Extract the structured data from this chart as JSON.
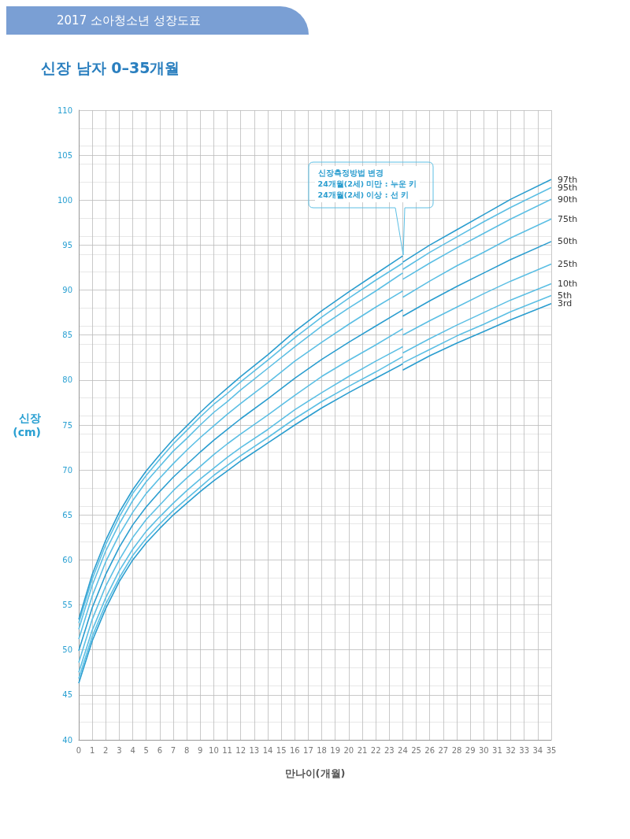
{
  "chart_data": {
    "type": "line",
    "subtitle": "2017 소아청소년 성장도표",
    "title": "신장 남자 0–35개월",
    "xlabel": "만나이(개월)",
    "ylabel": "신장 (cm)",
    "x": [
      0,
      1,
      2,
      3,
      4,
      5,
      6,
      7,
      8,
      9,
      10,
      11,
      12,
      14,
      16,
      18,
      20,
      22,
      24,
      24,
      26,
      28,
      30,
      32,
      35
    ],
    "series": [
      {
        "name": "3rd",
        "color": "#2a9dcf",
        "values": [
          46.3,
          51.0,
          54.6,
          57.6,
          60.0,
          61.9,
          63.5,
          65.0,
          66.3,
          67.6,
          68.8,
          69.9,
          71.0,
          73.0,
          75.0,
          76.9,
          78.6,
          80.2,
          81.8,
          81.1,
          82.7,
          84.1,
          85.4,
          86.7,
          88.5
        ]
      },
      {
        "name": "5th",
        "color": "#5cbfe4",
        "values": [
          46.8,
          51.5,
          55.1,
          58.0,
          60.5,
          62.4,
          64.0,
          65.5,
          66.8,
          68.1,
          69.4,
          70.5,
          71.6,
          73.6,
          75.7,
          77.6,
          79.3,
          80.9,
          82.6,
          81.9,
          83.4,
          84.9,
          86.2,
          87.6,
          89.4
        ]
      },
      {
        "name": "10th",
        "color": "#5cbfe4",
        "values": [
          47.5,
          52.2,
          55.8,
          58.8,
          61.2,
          63.2,
          64.8,
          66.3,
          67.7,
          69.0,
          70.2,
          71.4,
          72.5,
          74.5,
          76.7,
          78.6,
          80.4,
          82.1,
          83.7,
          83.0,
          84.6,
          86.1,
          87.5,
          88.9,
          90.7
        ]
      },
      {
        "name": "25th",
        "color": "#5cbfe4",
        "values": [
          48.6,
          53.4,
          57.1,
          60.0,
          62.5,
          64.5,
          66.1,
          67.7,
          69.1,
          70.4,
          71.7,
          72.9,
          74.0,
          76.1,
          78.3,
          80.4,
          82.2,
          83.9,
          85.7,
          85.0,
          86.6,
          88.1,
          89.6,
          91.0,
          92.9
        ]
      },
      {
        "name": "50th",
        "color": "#2a9dcf",
        "values": [
          49.9,
          54.7,
          58.4,
          61.4,
          63.9,
          65.9,
          67.6,
          69.2,
          70.6,
          72.0,
          73.3,
          74.5,
          75.7,
          77.9,
          80.2,
          82.3,
          84.2,
          86.0,
          87.8,
          87.1,
          88.8,
          90.4,
          91.9,
          93.4,
          95.4
        ]
      },
      {
        "name": "75th",
        "color": "#5cbfe4",
        "values": [
          51.2,
          56.0,
          59.8,
          62.8,
          65.3,
          67.4,
          69.1,
          70.7,
          72.2,
          73.6,
          74.9,
          76.2,
          77.4,
          79.7,
          82.1,
          84.2,
          86.2,
          88.1,
          89.9,
          89.2,
          91.0,
          92.7,
          94.2,
          95.8,
          97.9
        ]
      },
      {
        "name": "90th",
        "color": "#5cbfe4",
        "values": [
          52.3,
          57.2,
          61.0,
          64.0,
          66.6,
          68.7,
          70.4,
          72.1,
          73.5,
          75.0,
          76.4,
          77.6,
          78.9,
          81.3,
          83.7,
          86.0,
          88.0,
          89.9,
          91.9,
          91.2,
          93.0,
          94.7,
          96.3,
          97.9,
          100.1
        ]
      },
      {
        "name": "95th",
        "color": "#5cbfe4",
        "values": [
          53.0,
          57.9,
          61.7,
          64.8,
          67.4,
          69.4,
          71.2,
          72.9,
          74.4,
          75.9,
          77.3,
          78.5,
          79.8,
          82.2,
          84.7,
          87.0,
          89.1,
          91.1,
          93.0,
          92.3,
          94.2,
          95.9,
          97.6,
          99.2,
          101.4
        ]
      },
      {
        "name": "97th",
        "color": "#2a9dcf",
        "values": [
          53.4,
          58.4,
          62.2,
          65.3,
          67.8,
          69.9,
          71.7,
          73.4,
          74.9,
          76.4,
          77.8,
          79.1,
          80.4,
          82.8,
          85.4,
          87.7,
          89.8,
          91.8,
          93.8,
          93.1,
          95.0,
          96.7,
          98.4,
          100.1,
          102.3
        ]
      }
    ],
    "xlim": [
      0,
      35
    ],
    "xticks": [
      0,
      1,
      2,
      3,
      4,
      5,
      6,
      7,
      8,
      9,
      10,
      11,
      12,
      13,
      14,
      15,
      16,
      17,
      18,
      19,
      20,
      21,
      22,
      23,
      24,
      25,
      26,
      27,
      28,
      29,
      30,
      31,
      32,
      33,
      34,
      35
    ],
    "ylim": [
      40,
      110
    ],
    "yticks": [
      40,
      45,
      50,
      55,
      60,
      65,
      70,
      75,
      80,
      85,
      90,
      95,
      100,
      105,
      110
    ],
    "grid": true,
    "legend": false,
    "marker": "none",
    "line_style": "solid",
    "annotations": [
      "신장측정방법 변경\n24개월(2세) 미만 : 누운 키\n24개월(2세) 이상 : 선 키"
    ]
  }
}
